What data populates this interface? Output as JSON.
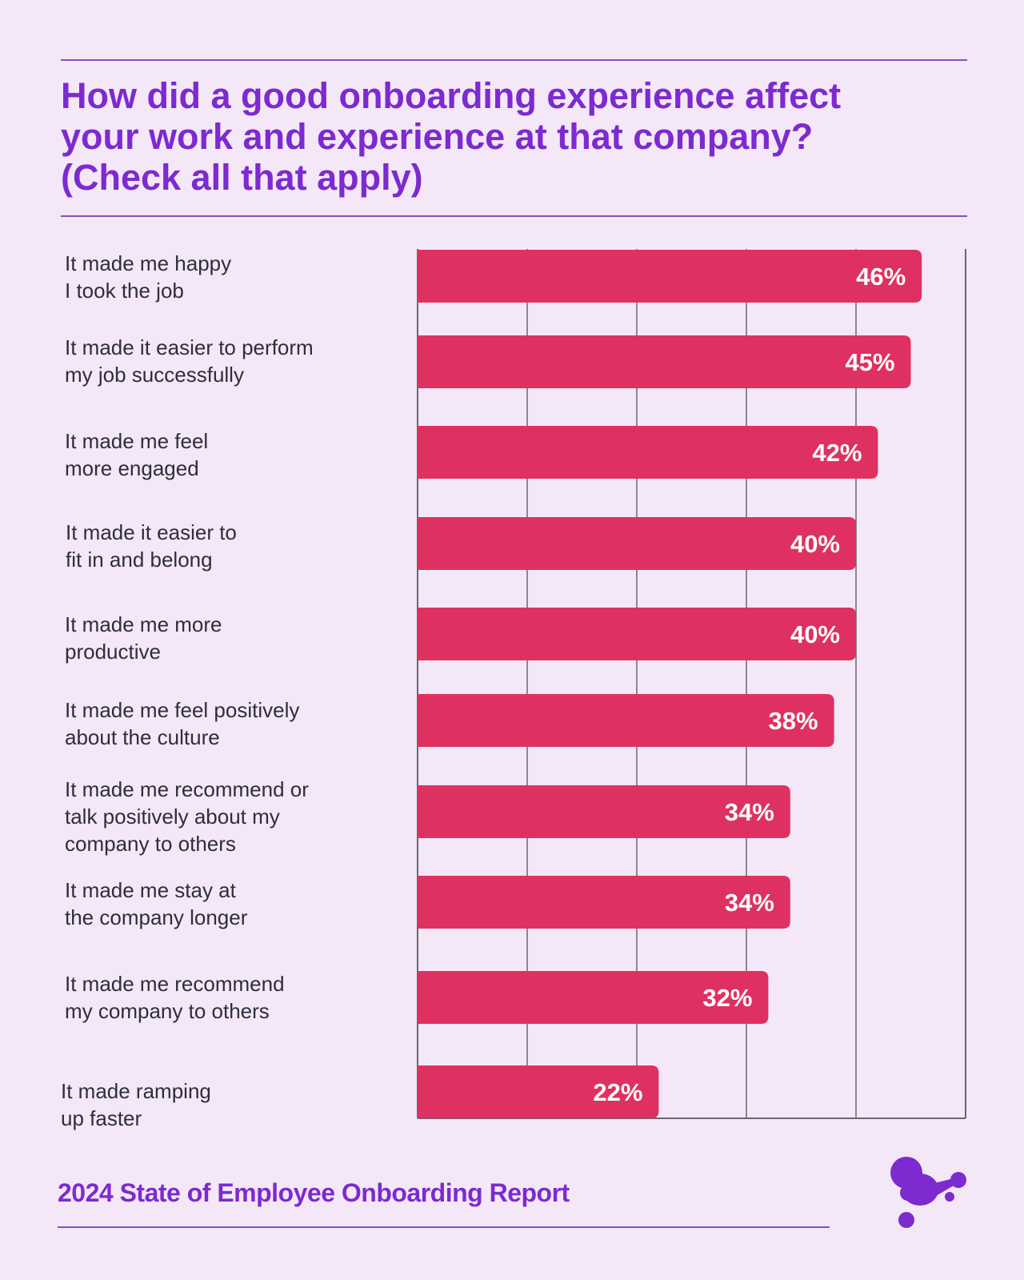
{
  "title": "How did a good onboarding experience affect\nyour work and experience at that company?\n(Check all that apply)",
  "footer": "2024 State of Employee Onboarding Report",
  "colors": {
    "background": "#f4e8f8",
    "accent": "#7d2ad0",
    "bar": "#df3161",
    "grid": "#6b6673"
  },
  "logo_icon": "purple-blob-logo-icon",
  "chart_data": {
    "type": "bar",
    "orientation": "horizontal",
    "title": "How did a good onboarding experience affect your work and experience at that company? (Check all that apply)",
    "categories": [
      "It made me happy\nI took the job",
      "It made it easier to perform\nmy job successfully",
      "It made me feel\nmore engaged",
      "It made it easier to\nfit in and belong",
      "It made me more\nproductive",
      "It made me feel positively\nabout the culture",
      "It made me recommend or\ntalk positively about my\ncompany to others",
      "It made me stay at\nthe company longer",
      "It made me recommend\nmy company to others",
      "It made ramping\nup faster"
    ],
    "values": [
      46,
      45,
      42,
      40,
      40,
      38,
      34,
      34,
      32,
      22
    ],
    "value_labels": [
      "46%",
      "45%",
      "42%",
      "40%",
      "40%",
      "38%",
      "34%",
      "34%",
      "32%",
      "22%"
    ],
    "unit": "%",
    "grid": true,
    "legend": false
  }
}
